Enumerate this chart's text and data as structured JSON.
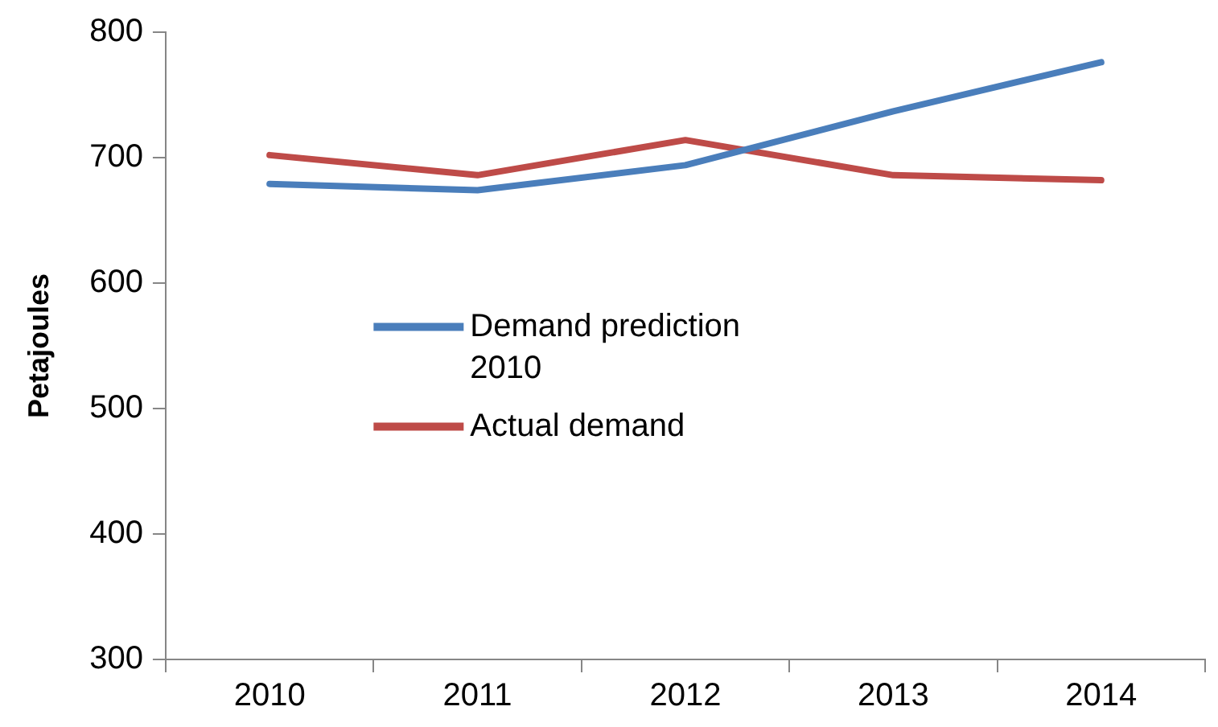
{
  "chart_data": {
    "type": "line",
    "ylabel": "Petajoules",
    "categories": [
      "2010",
      "2011",
      "2012",
      "2013",
      "2014"
    ],
    "series": [
      {
        "name": "Demand prediction 2010",
        "color": "#4a7ebb",
        "values": [
          679,
          674,
          694,
          737,
          776
        ]
      },
      {
        "name": "Actual demand",
        "color": "#be4b48",
        "values": [
          702,
          686,
          714,
          686,
          682
        ]
      }
    ],
    "ylim": [
      300,
      800
    ],
    "yticks": [
      300,
      400,
      500,
      600,
      700,
      800
    ],
    "grid": false,
    "legend": "center left",
    "marker": "none",
    "line_style": "solid"
  }
}
